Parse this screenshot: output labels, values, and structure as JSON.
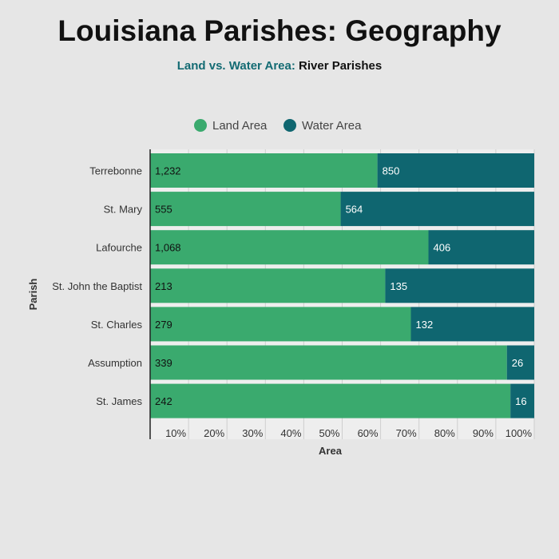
{
  "header": {
    "title": "Louisiana Parishes: Geography",
    "subtitle_highlight": "Land vs. Water Area:",
    "subtitle_rest": "River Parishes"
  },
  "chart_data": {
    "type": "bar",
    "orientation": "horizontal",
    "stacked": "percent",
    "categories": [
      "Terrebonne",
      "St. Mary",
      "Lafourche",
      "St. John the Baptist",
      "St. Charles",
      "Assumption",
      "St. James"
    ],
    "series": [
      {
        "name": "Land Area",
        "color": "#3aaa6e",
        "label_color": "#111111",
        "values": [
          1232,
          555,
          1068,
          213,
          279,
          339,
          242
        ],
        "labels": [
          "1,232",
          "555",
          "1,068",
          "213",
          "279",
          "339",
          "242"
        ]
      },
      {
        "name": "Water Area",
        "color": "#0f6670",
        "label_color": "#ffffff",
        "values": [
          850,
          564,
          406,
          135,
          132,
          26,
          16
        ],
        "labels": [
          "850",
          "564",
          "406",
          "135",
          "132",
          "26",
          "16"
        ]
      }
    ],
    "xlabel": "Area",
    "ylabel": "Parish",
    "x_ticks": [
      "10%",
      "20%",
      "30%",
      "40%",
      "50%",
      "60%",
      "70%",
      "80%",
      "90%",
      "100%"
    ],
    "xlim": [
      0,
      100
    ],
    "legend_position": "top-center",
    "grid": true
  }
}
